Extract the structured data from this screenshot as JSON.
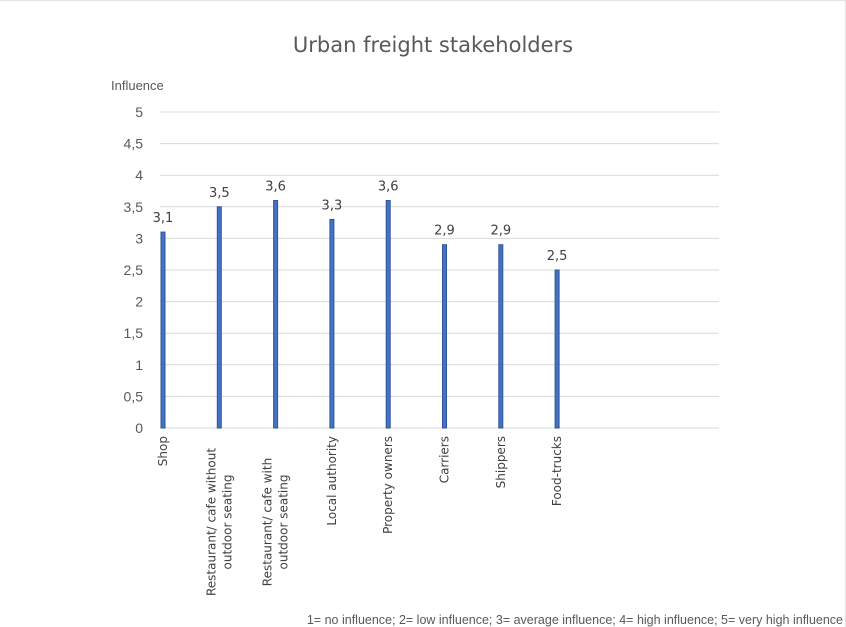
{
  "chart_data": {
    "type": "bar",
    "title": "Urban freight stakeholders",
    "xlabel": "",
    "ylabel": "Influence",
    "ylim": [
      0,
      5
    ],
    "ytick_labels": [
      "0",
      "0,5",
      "1",
      "1,5",
      "2",
      "2,5",
      "3",
      "3,5",
      "4",
      "4,5",
      "5"
    ],
    "categories": [
      [
        "Shop"
      ],
      [
        "Restaurant/ cafe without",
        "outdoor seating"
      ],
      [
        "Restaurant/ cafe with",
        "outdoor seating"
      ],
      [
        "Local authority"
      ],
      [
        "Property owners"
      ],
      [
        "Carriers"
      ],
      [
        "Shippers"
      ],
      [
        "Food-trucks"
      ]
    ],
    "values": [
      3.1,
      3.5,
      3.6,
      3.3,
      3.6,
      2.9,
      2.9,
      2.5
    ],
    "data_labels": [
      "3,1",
      "3,5",
      "3,6",
      "3,3",
      "3,6",
      "2,9",
      "2,9",
      "2,5"
    ],
    "footnote": "1= no influence; 2= low influence; 3= average influence; 4= high influence; 5= very high influence",
    "grid": true,
    "legend": "none",
    "colors": {
      "bar_fill": "#4472c4",
      "bar_edge": "#2f5597",
      "grid": "#d9d9d9",
      "text": "#595959"
    }
  }
}
